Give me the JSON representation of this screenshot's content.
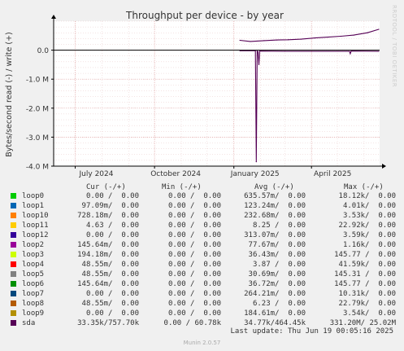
{
  "chart_data": {
    "type": "line",
    "title": "Throughput per device - by year",
    "ylabel": "Bytes/second read (-) / write (+)",
    "ylim": [
      -4000000,
      1000000
    ],
    "y_ticks": [
      {
        "value": 0,
        "label": "0.0"
      },
      {
        "value": -1000000,
        "label": "-1.0 M"
      },
      {
        "value": -2000000,
        "label": "-2.0 M"
      },
      {
        "value": -3000000,
        "label": "-3.0 M"
      },
      {
        "value": -4000000,
        "label": "-4.0 M"
      }
    ],
    "x_range": [
      "2024-06-06",
      "2025-06-19"
    ],
    "x_ticks": [
      {
        "date": "2024-07-01",
        "label": "July 2024"
      },
      {
        "date": "2024-10-01",
        "label": "October 2024"
      },
      {
        "date": "2025-01-01",
        "label": "January 2025"
      },
      {
        "date": "2025-04-01",
        "label": "April 2025"
      }
    ],
    "grid": true,
    "series": [
      {
        "name": "sda",
        "color": "#550055",
        "write": [
          {
            "date": "2025-01-08",
            "value": 340000
          },
          {
            "date": "2025-01-20",
            "value": 300000
          },
          {
            "date": "2025-02-05",
            "value": 330000
          },
          {
            "date": "2025-02-20",
            "value": 350000
          },
          {
            "date": "2025-03-05",
            "value": 360000
          },
          {
            "date": "2025-03-20",
            "value": 380000
          },
          {
            "date": "2025-04-05",
            "value": 420000
          },
          {
            "date": "2025-04-20",
            "value": 450000
          },
          {
            "date": "2025-05-05",
            "value": 480000
          },
          {
            "date": "2025-05-20",
            "value": 520000
          },
          {
            "date": "2025-06-05",
            "value": 600000
          },
          {
            "date": "2025-06-18",
            "value": 720000
          }
        ],
        "read": [
          {
            "date": "2025-01-08",
            "value": -20000
          },
          {
            "date": "2025-01-26",
            "value": -20000
          },
          {
            "date": "2025-01-27",
            "value": -3850000
          },
          {
            "date": "2025-01-28",
            "value": -30000
          },
          {
            "date": "2025-01-29",
            "value": -50000
          },
          {
            "date": "2025-01-30",
            "value": -500000
          },
          {
            "date": "2025-01-31",
            "value": -30000
          },
          {
            "date": "2025-03-01",
            "value": -40000
          },
          {
            "date": "2025-05-15",
            "value": -40000
          },
          {
            "date": "2025-05-16",
            "value": -120000
          },
          {
            "date": "2025-05-17",
            "value": -30000
          },
          {
            "date": "2025-06-18",
            "value": -40000
          }
        ]
      }
    ]
  },
  "legend_header": {
    "cur": "Cur (-/+)",
    "min": "Min (-/+)",
    "avg": "Avg (-/+)",
    "max": "Max (-/+)"
  },
  "legend": [
    {
      "name": "loop0",
      "color": "#00cc00",
      "cur": "0.00 /  0.00",
      "min": "0.00 /  0.00",
      "avg": "635.57m/  0.00",
      "max": "18.12k/  0.00"
    },
    {
      "name": "loop1",
      "color": "#0066b3",
      "cur": "97.09m/  0.00",
      "min": "0.00 /  0.00",
      "avg": "123.24m/  0.00",
      "max": "4.01k/  0.00"
    },
    {
      "name": "loop10",
      "color": "#ff8000",
      "cur": "728.18m/  0.00",
      "min": "0.00 /  0.00",
      "avg": "232.68m/  0.00",
      "max": "3.53k/  0.00"
    },
    {
      "name": "loop11",
      "color": "#ffcc00",
      "cur": "4.63 /  0.00",
      "min": "0.00 /  0.00",
      "avg": "8.25 /  0.00",
      "max": "22.92k/  0.00"
    },
    {
      "name": "loop12",
      "color": "#330099",
      "cur": "0.00 /  0.00",
      "min": "0.00 /  0.00",
      "avg": "313.07m/  0.00",
      "max": "3.59k/  0.00"
    },
    {
      "name": "loop2",
      "color": "#990099",
      "cur": "145.64m/  0.00",
      "min": "0.00 /  0.00",
      "avg": "77.67m/  0.00",
      "max": "1.16k/  0.00"
    },
    {
      "name": "loop3",
      "color": "#ccff00",
      "cur": "194.18m/  0.00",
      "min": "0.00 /  0.00",
      "avg": "36.43m/  0.00",
      "max": "145.77 /  0.00"
    },
    {
      "name": "loop4",
      "color": "#ff0000",
      "cur": "48.55m/  0.00",
      "min": "0.00 /  0.00",
      "avg": "3.87 /  0.00",
      "max": "41.59k/  0.00"
    },
    {
      "name": "loop5",
      "color": "#808080",
      "cur": "48.55m/  0.00",
      "min": "0.00 /  0.00",
      "avg": "30.69m/  0.00",
      "max": "145.31 /  0.00"
    },
    {
      "name": "loop6",
      "color": "#008f00",
      "cur": "145.64m/  0.00",
      "min": "0.00 /  0.00",
      "avg": "36.72m/  0.00",
      "max": "145.77 /  0.00"
    },
    {
      "name": "loop7",
      "color": "#00487d",
      "cur": "0.00 /  0.00",
      "min": "0.00 /  0.00",
      "avg": "264.21m/  0.00",
      "max": "10.31k/  0.00"
    },
    {
      "name": "loop8",
      "color": "#b35a00",
      "cur": "48.55m/  0.00",
      "min": "0.00 /  0.00",
      "avg": "6.23 /  0.00",
      "max": "22.79k/  0.00"
    },
    {
      "name": "loop9",
      "color": "#b38f00",
      "cur": "0.00 /  0.00",
      "min": "0.00 /  0.00",
      "avg": "184.61m/  0.00",
      "max": "3.54k/  0.00"
    },
    {
      "name": "sda",
      "color": "#550055",
      "cur": "33.35k/757.70k",
      "min": "0.00 / 60.78k",
      "avg": "34.77k/464.45k",
      "max": "331.20M/ 25.02M"
    }
  ],
  "last_update": "Last update: Thu Jun 19 00:05:16 2025",
  "munin_version": "Munin 2.0.57",
  "rrd_credit": "RRDTOOL / TOBI OETIKER"
}
